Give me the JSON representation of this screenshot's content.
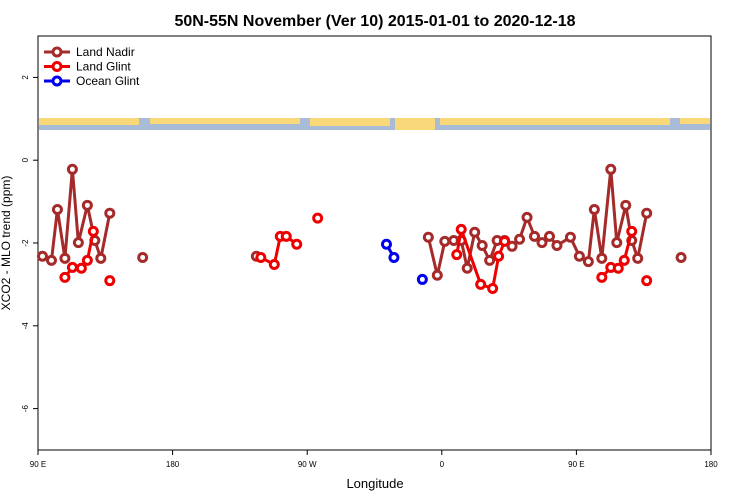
{
  "chart_data": {
    "type": "line",
    "title": "50N-55N November (Ver 10)   2015-01-01 to 2020-12-18",
    "xlabel": "Longitude",
    "ylabel": "XCO2 - MLO trend (ppm)",
    "xlim": [
      90,
      540
    ],
    "ylim": [
      -7,
      3
    ],
    "xticks": [
      {
        "value": 90,
        "label": "90 E"
      },
      180,
      {
        "value": 270,
        "label": "90 W"
      },
      {
        "value": 360,
        "label": "0"
      },
      {
        "value": 450,
        "label": "90 E"
      },
      {
        "value": 540,
        "label": "180"
      }
    ],
    "yticks": [
      -6,
      -4,
      -2,
      0,
      2
    ],
    "legend": "top-left",
    "series": [
      {
        "name": "Land Nadir",
        "color": "#a52a2a",
        "x": [
          93,
          99,
          103,
          108,
          113,
          117,
          123,
          128,
          132,
          138,
          null,
          160,
          null,
          236,
          null,
          351,
          357,
          362,
          368,
          373,
          377,
          382,
          387,
          392,
          397,
          402,
          407,
          412,
          417,
          422,
          427,
          432,
          437,
          446,
          452,
          458,
          462,
          467,
          473,
          477,
          483,
          487,
          491,
          497,
          null,
          520
        ],
        "values": [
          -2.32,
          -2.42,
          -1.19,
          -2.37,
          -0.22,
          -1.99,
          -1.09,
          -1.94,
          -2.37,
          -1.28,
          null,
          -2.35,
          null,
          -2.32,
          null,
          -1.86,
          -2.78,
          -1.96,
          -1.94,
          -1.94,
          -2.61,
          -1.74,
          -2.06,
          -2.42,
          -1.94,
          -1.94,
          -2.08,
          -1.91,
          -1.38,
          -1.84,
          -1.99,
          -1.84,
          -2.06,
          -1.86,
          -2.32,
          -2.45,
          -1.19,
          -2.37,
          -0.22,
          -1.99,
          -1.09,
          -1.94,
          -2.37,
          -1.28,
          null,
          -2.35
        ]
      },
      {
        "name": "Land Glint",
        "color": "#ee0000",
        "x": [
          108,
          113,
          119,
          123,
          127,
          null,
          138,
          null,
          239,
          248,
          252,
          256,
          263,
          null,
          277,
          null,
          370,
          373,
          386,
          394,
          398,
          402,
          null,
          467,
          473,
          478,
          482,
          487,
          null,
          497
        ],
        "values": [
          -2.83,
          -2.59,
          -2.61,
          -2.42,
          -1.72,
          null,
          -2.91,
          null,
          -2.35,
          -2.52,
          -1.84,
          -1.84,
          -2.03,
          null,
          -1.4,
          null,
          -2.28,
          -1.67,
          -3.0,
          -3.1,
          -2.32,
          -1.96,
          null,
          -2.83,
          -2.59,
          -2.61,
          -2.42,
          -1.72,
          null,
          -2.91
        ]
      },
      {
        "name": "Ocean Glint",
        "color": "#0000ee",
        "x": [
          323,
          328,
          null,
          347
        ],
        "values": [
          -2.03,
          -2.35,
          null,
          -2.88
        ]
      }
    ]
  }
}
